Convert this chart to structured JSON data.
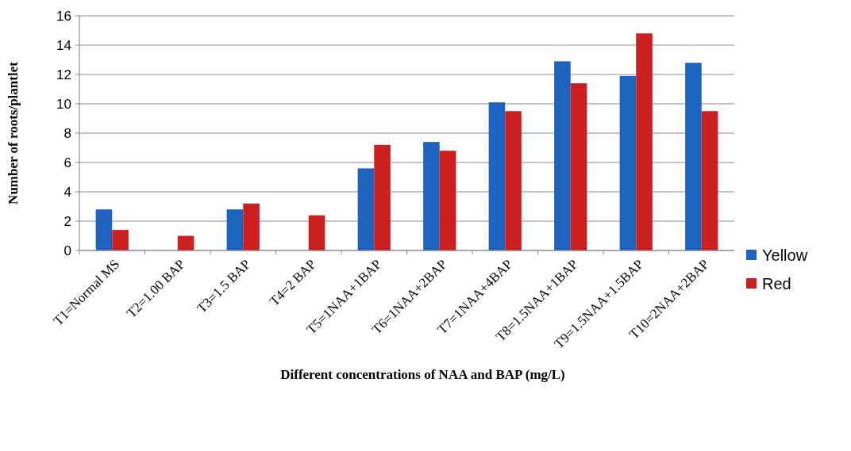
{
  "chart_data": {
    "type": "bar",
    "xlabel": "Different concentrations of NAA and BAP (mg/L)",
    "ylabel": "Number of roots/plantlet",
    "categories": [
      "T1=Normal MS",
      "T2=1.00 BAP",
      "T3=1.5 BAP",
      "T4=2 BAP",
      "T5=1NAA+1BAP",
      "T6=1NAA+2BAP",
      "T7=1NAA+4BAP",
      "T8=1.5NAA+1BAP",
      "T9=1.5NAA+1.5BAP",
      "T10=2NAA+2BAP"
    ],
    "series": [
      {
        "name": "Yellow",
        "color": "#1f63c0",
        "values": [
          2.8,
          0,
          2.8,
          0,
          5.6,
          7.4,
          10.1,
          12.9,
          11.9,
          12.8
        ]
      },
      {
        "name": "Red",
        "color": "#cc2020",
        "values": [
          1.4,
          1.0,
          3.2,
          2.4,
          7.2,
          6.8,
          9.5,
          11.4,
          14.8,
          9.5
        ]
      }
    ],
    "ylim": [
      0,
      16
    ],
    "yticks": [
      0,
      2,
      4,
      6,
      8,
      10,
      12,
      14,
      16
    ],
    "grid": "y",
    "legend": "right"
  }
}
